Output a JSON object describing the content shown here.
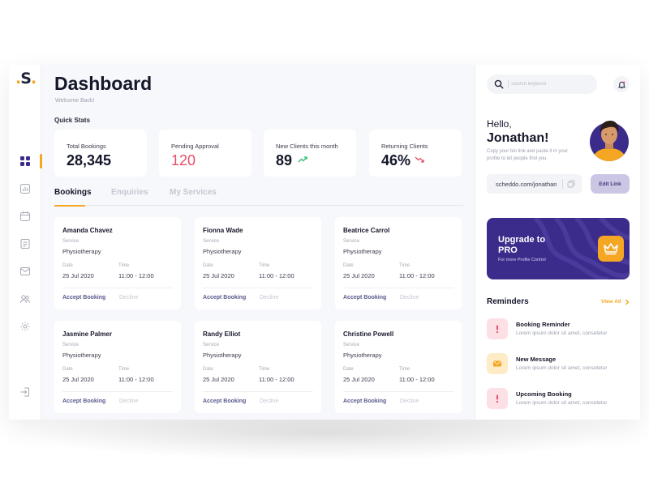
{
  "brand": {
    "logo_text": "S",
    "accent_color": "#f5a623",
    "primary_color": "#3b2b8a"
  },
  "sidebar": {
    "items": [
      {
        "name": "dashboard-icon",
        "active": true
      },
      {
        "name": "chart-icon",
        "active": false
      },
      {
        "name": "calendar-icon",
        "active": false
      },
      {
        "name": "document-icon",
        "active": false
      },
      {
        "name": "mail-icon",
        "active": false
      },
      {
        "name": "users-icon",
        "active": false
      },
      {
        "name": "gear-icon",
        "active": false
      },
      {
        "name": "logout-icon",
        "active": false
      }
    ]
  },
  "header": {
    "title": "Dashboard",
    "subtitle": "Welcome Back!"
  },
  "quick_stats": {
    "label": "Quick Stats",
    "items": [
      {
        "label": "Total Bookings",
        "value": "28,345"
      },
      {
        "label": "Pending Approval",
        "value": "120",
        "color": "#e44e6b"
      },
      {
        "label": "New Clients this month",
        "value": "89",
        "trend": "up"
      },
      {
        "label": "Returning Clients",
        "value": "46%",
        "trend": "down"
      }
    ]
  },
  "tabs": [
    {
      "label": "Bookings",
      "active": true
    },
    {
      "label": "Enquiries",
      "active": false
    },
    {
      "label": "My Services",
      "active": false
    }
  ],
  "booking_labels": {
    "service": "Service",
    "date": "Date",
    "time": "Time",
    "accept": "Accept Booking",
    "decline": "Decline"
  },
  "bookings": [
    {
      "name": "Amanda Chavez",
      "service": "Physiotherapy",
      "date": "25 Jul 2020",
      "time": "11:00 - 12:00"
    },
    {
      "name": "Fionna Wade",
      "service": "Physiotherapy",
      "date": "25 Jul 2020",
      "time": "11:00 - 12:00"
    },
    {
      "name": "Beatrice Carrol",
      "service": "Physiotherapy",
      "date": "25 Jul 2020",
      "time": "11:00 - 12:00"
    },
    {
      "name": "Jasmine Palmer",
      "service": "Physiotherapy",
      "date": "25 Jul 2020",
      "time": "11:00 - 12:00"
    },
    {
      "name": "Randy Elliot",
      "service": "Physiotherapy",
      "date": "25 Jul 2020",
      "time": "11:00 - 12:00"
    },
    {
      "name": "Christine Powell",
      "service": "Physiotherapy",
      "date": "25 Jul 2020",
      "time": "11:00 - 12:00"
    }
  ],
  "search": {
    "placeholder": "Search keyword"
  },
  "profile": {
    "greeting": "Hello,",
    "name": "Jonathan!",
    "bio": "Copy your bio link and paste it in your profile to let people find you.",
    "link": "scheddo.com/jonathan",
    "edit_label": "Edit Link"
  },
  "pro": {
    "title": "Upgrade to PRO",
    "subtitle": "For more Profile Control"
  },
  "reminders": {
    "title": "Reminders",
    "view_all": "View All",
    "items": [
      {
        "title": "Booking Reminder",
        "desc": "Lorem ipsum dolor sit amet, consetetur",
        "icon": "alert-icon",
        "tone": "red"
      },
      {
        "title": "New Message",
        "desc": "Lorem ipsum dolor sit amet, consetetur",
        "icon": "mail-icon",
        "tone": "yellow"
      },
      {
        "title": "Upcoming Booking",
        "desc": "Lorem ipsum dolor sit amet, consetetur",
        "icon": "alert-icon",
        "tone": "red"
      }
    ]
  }
}
